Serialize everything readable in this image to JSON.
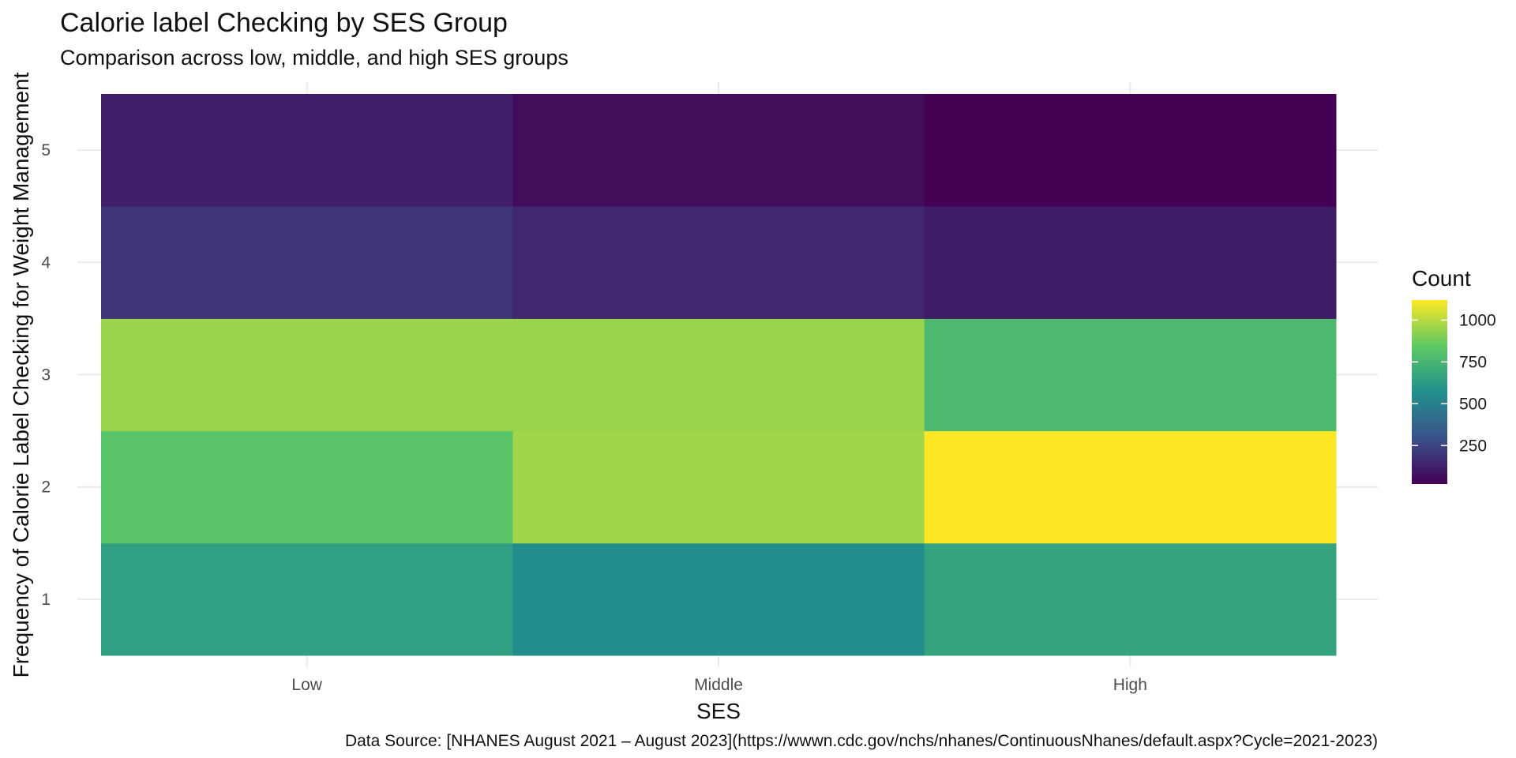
{
  "chart_data": {
    "type": "heatmap",
    "title": "Calorie label Checking by SES Group",
    "subtitle": "Comparison across low, middle, and high SES groups",
    "xlabel": "SES",
    "ylabel": "Frequency of Calorie Label Checking for Weight Management",
    "x_categories": [
      "Low",
      "Middle",
      "High"
    ],
    "y_categories": [
      "1",
      "2",
      "3",
      "4",
      "5"
    ],
    "values": [
      [
        640,
        560,
        660
      ],
      [
        820,
        960,
        1120
      ],
      [
        950,
        950,
        770
      ],
      [
        200,
        150,
        110
      ],
      [
        120,
        60,
        20
      ]
    ],
    "legend": {
      "title": "Count",
      "ticks": [
        250,
        500,
        750,
        1000
      ],
      "tick_labels": [
        "250",
        "500",
        "750",
        "1000"
      ],
      "min": 20,
      "max": 1120,
      "position": "right"
    },
    "colormap": [
      "#440154",
      "#3b528b",
      "#21908c",
      "#5dc963",
      "#fde725"
    ],
    "grid": true,
    "caption": "Data Source: [NHANES August 2021 – August 2023](https://wwwn.cdc.gov/nchs/nhanes/ContinuousNhanes/default.aspx?Cycle=2021-2023)"
  }
}
